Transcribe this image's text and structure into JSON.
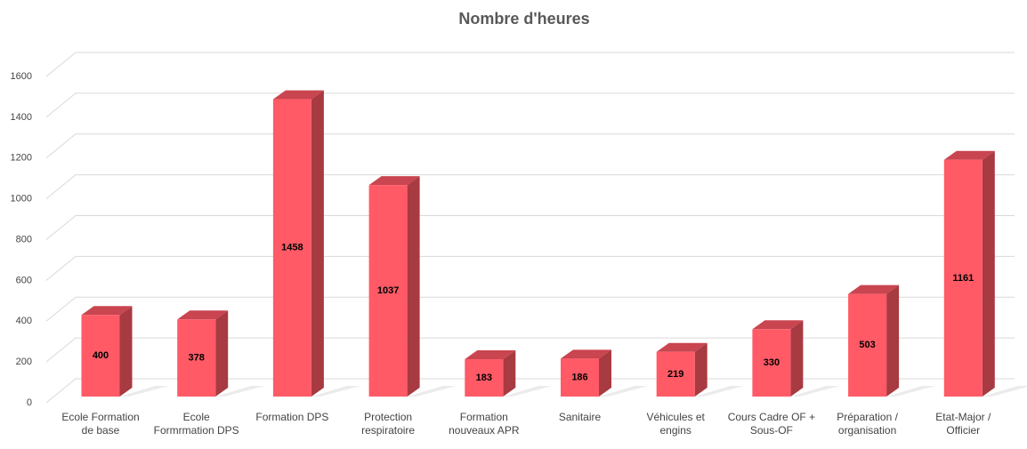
{
  "chart_data": {
    "type": "bar3d",
    "title": "Nombre d'heures",
    "categories": [
      "Ecole Formation de base",
      "Ecole Formrmation DPS",
      "Formation DPS",
      "Protection respiratoire",
      "Formation nouveaux APR",
      "Sanitaire",
      "Véhicules et engins",
      "Cours Cadre OF + Sous-OF",
      "Préparation / organisation",
      "Etat-Major / Officier"
    ],
    "values": [
      400,
      378,
      1458,
      1037,
      183,
      186,
      219,
      330,
      503,
      1161
    ],
    "color": "#ff5a66",
    "ylim": [
      0,
      1600
    ],
    "yticks": [
      0,
      200,
      400,
      600,
      800,
      1000,
      1200,
      1400,
      1600
    ],
    "grid": true
  }
}
